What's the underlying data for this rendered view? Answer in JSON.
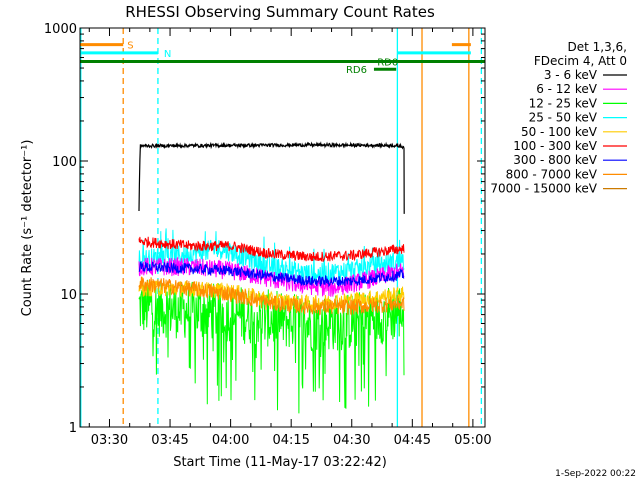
{
  "chart_data": {
    "type": "line",
    "title": "RHESSI Observing Summary Count Rates",
    "xlabel": "Start Time (11-May-17 03:22:42)",
    "ylabel": "Count Rate (s⁻¹ detector⁻¹)",
    "yscale": "log",
    "ylim": [
      1,
      1000
    ],
    "xlim_minutes": [
      22.7,
      123.0
    ],
    "x_ticks": [
      {
        "t": 30,
        "label": "03:30"
      },
      {
        "t": 45,
        "label": "03:45"
      },
      {
        "t": 60,
        "label": "04:00"
      },
      {
        "t": 75,
        "label": "04:15"
      },
      {
        "t": 90,
        "label": "04:30"
      },
      {
        "t": 105,
        "label": "04:45"
      },
      {
        "t": 120,
        "label": "05:00"
      }
    ],
    "y_ticks": [
      {
        "v": 1,
        "label": "1"
      },
      {
        "v": 10,
        "label": "10"
      },
      {
        "v": 100,
        "label": "100"
      },
      {
        "v": 1000,
        "label": "1000"
      }
    ],
    "legend_header": [
      "Det 1,3,6,",
      "FDecim 4, Att 0"
    ],
    "series": [
      {
        "name": "3 - 6 keV",
        "color": "#000000",
        "values": [
          [
            37.3,
            42
          ],
          [
            37.6,
            130
          ],
          [
            60,
            131
          ],
          [
            80,
            132
          ],
          [
            100,
            131
          ],
          [
            103.0,
            128
          ]
        ]
      },
      {
        "name": "6 - 12 keV",
        "color": "#ff00ff",
        "values": [
          [
            37.3,
            16
          ],
          [
            50,
            16
          ],
          [
            60,
            15
          ],
          [
            75,
            12
          ],
          [
            85,
            11
          ],
          [
            95,
            13
          ],
          [
            103,
            15
          ]
        ]
      },
      {
        "name": "12 - 25 keV",
        "color": "#00ff00",
        "values": [
          [
            37.3,
            8
          ],
          [
            50,
            7.5
          ],
          [
            60,
            7.2
          ],
          [
            70,
            6.5
          ],
          [
            80,
            6.0
          ],
          [
            90,
            6.2
          ],
          [
            103,
            7.5
          ]
        ]
      },
      {
        "name": "25 - 50 keV",
        "color": "#00ffff",
        "values": [
          [
            37.3,
            18
          ],
          [
            50,
            20
          ],
          [
            58,
            22
          ],
          [
            70,
            16
          ],
          [
            80,
            14
          ],
          [
            90,
            15
          ],
          [
            103,
            18
          ]
        ]
      },
      {
        "name": "50 - 100 keV",
        "color": "#ffcc00",
        "values": [
          [
            37.3,
            11
          ],
          [
            50,
            11
          ],
          [
            60,
            10.5
          ],
          [
            70,
            9
          ],
          [
            80,
            8.5
          ],
          [
            90,
            9
          ],
          [
            103,
            10
          ]
        ]
      },
      {
        "name": "100 - 300 keV",
        "color": "#ff0000",
        "values": [
          [
            37.3,
            25
          ],
          [
            50,
            23
          ],
          [
            60,
            23
          ],
          [
            70,
            20
          ],
          [
            80,
            19
          ],
          [
            90,
            19.5
          ],
          [
            103,
            22
          ]
        ]
      },
      {
        "name": "300 - 800 keV",
        "color": "#0000ff",
        "values": [
          [
            37.3,
            16
          ],
          [
            50,
            15.5
          ],
          [
            60,
            15
          ],
          [
            70,
            13.5
          ],
          [
            80,
            12.5
          ],
          [
            90,
            12.5
          ],
          [
            103,
            14
          ]
        ]
      },
      {
        "name": "800 - 7000 keV",
        "color": "#ff8c00",
        "values": [
          [
            37.3,
            12
          ],
          [
            50,
            11
          ],
          [
            60,
            10
          ],
          [
            70,
            8.5
          ],
          [
            80,
            8
          ],
          [
            90,
            8
          ],
          [
            103,
            8.5
          ]
        ]
      },
      {
        "name": "7000 - 15000 keV",
        "color": "#cc7a00",
        "values": []
      }
    ],
    "flags": [
      {
        "label": "S",
        "color": "#ff8c00",
        "segments": [
          [
            22.7,
            33.4
          ],
          [
            114.8,
            119.5
          ]
        ],
        "y": 750
      },
      {
        "label": "N",
        "color": "#00ffff",
        "segments": [
          [
            22.7,
            42.0
          ],
          [
            101.3,
            119.5
          ]
        ],
        "y": 650
      },
      {
        "label": "RD0",
        "color": "#008000",
        "segments": [
          [
            22.7,
            123.0
          ]
        ],
        "y": 560
      },
      {
        "label": "RD6",
        "color": "#008000",
        "segments": [
          [
            95.5,
            101.0
          ]
        ],
        "y": 490
      }
    ],
    "vlines": [
      {
        "t": 22.9,
        "color": "#00ffff",
        "style": "solid"
      },
      {
        "t": 33.4,
        "color": "#ff8c00",
        "style": "dashed"
      },
      {
        "t": 42.0,
        "color": "#00ffff",
        "style": "dashed"
      },
      {
        "t": 101.3,
        "color": "#00ffff",
        "style": "solid"
      },
      {
        "t": 107.4,
        "color": "#ff8c00",
        "style": "solid"
      },
      {
        "t": 119.0,
        "color": "#ff8c00",
        "style": "solid"
      },
      {
        "t": 122.1,
        "color": "#00ffff",
        "style": "dashed"
      }
    ]
  },
  "footer": {
    "timestamp": "1-Sep-2022 00:22"
  }
}
